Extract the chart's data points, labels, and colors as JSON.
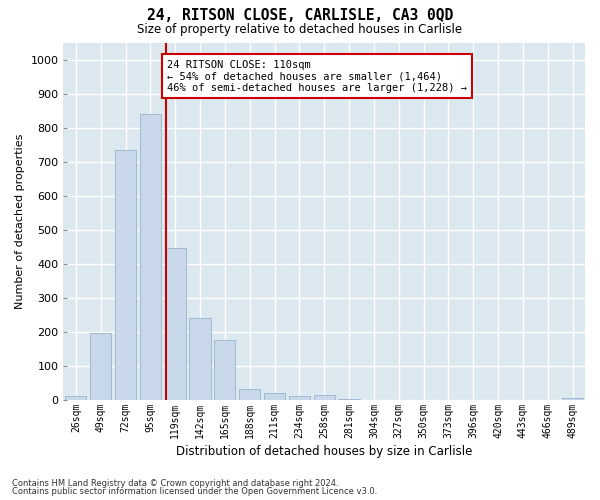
{
  "title1": "24, RITSON CLOSE, CARLISLE, CA3 0QD",
  "title2": "Size of property relative to detached houses in Carlisle",
  "xlabel": "Distribution of detached houses by size in Carlisle",
  "ylabel": "Number of detached properties",
  "categories": [
    "26sqm",
    "49sqm",
    "72sqm",
    "95sqm",
    "119sqm",
    "142sqm",
    "165sqm",
    "188sqm",
    "211sqm",
    "234sqm",
    "258sqm",
    "281sqm",
    "304sqm",
    "327sqm",
    "350sqm",
    "373sqm",
    "396sqm",
    "420sqm",
    "443sqm",
    "466sqm",
    "489sqm"
  ],
  "values": [
    10,
    195,
    735,
    840,
    445,
    240,
    175,
    30,
    20,
    10,
    13,
    2,
    0,
    0,
    0,
    0,
    0,
    0,
    0,
    0,
    5
  ],
  "bar_color": "#c8d8ea",
  "bar_edge_color": "#9ab4cc",
  "property_line_color": "#cc0000",
  "annotation_text": "24 RITSON CLOSE: 110sqm\n← 54% of detached houses are smaller (1,464)\n46% of semi-detached houses are larger (1,228) →",
  "annotation_box_color": "#ffffff",
  "annotation_box_edge_color": "#cc0000",
  "ylim": [
    0,
    1050
  ],
  "yticks": [
    0,
    100,
    200,
    300,
    400,
    500,
    600,
    700,
    800,
    900,
    1000
  ],
  "plot_bg_color": "#dce8f0",
  "grid_color": "#ffffff",
  "fig_bg_color": "#ffffff",
  "footer1": "Contains HM Land Registry data © Crown copyright and database right 2024.",
  "footer2": "Contains public sector information licensed under the Open Government Licence v3.0."
}
